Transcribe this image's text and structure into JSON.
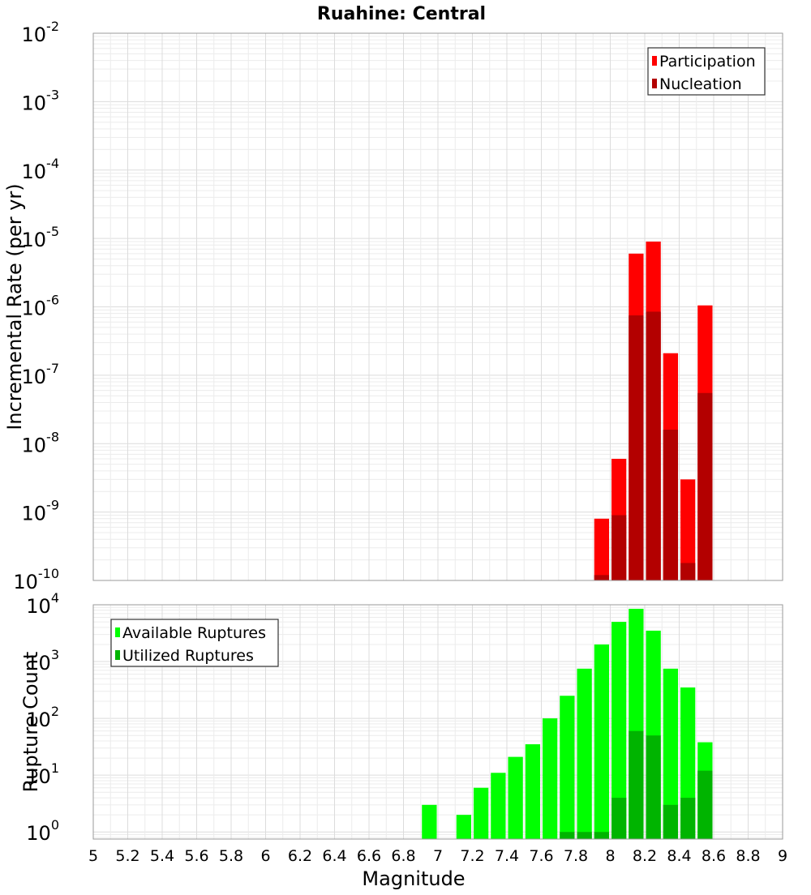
{
  "chart_data": [
    {
      "type": "bar",
      "title": "Ruahine: Central",
      "xlabel": "",
      "ylabel": "Incremental Rate (per yr)",
      "yscale": "log",
      "xlim": [
        5,
        9
      ],
      "ylim": [
        1e-10,
        0.01
      ],
      "ytick_exponents": [
        -10,
        -9,
        -8,
        -7,
        -6,
        -5,
        -4,
        -3,
        -2
      ],
      "grid": true,
      "legend": "top-right",
      "series": [
        {
          "name": "Participation",
          "color": "#ff0000",
          "x": [
            7.95,
            8.05,
            8.15,
            8.25,
            8.35,
            8.45,
            8.55
          ],
          "values": [
            8e-10,
            6e-09,
            6e-06,
            9e-06,
            2.1e-07,
            3e-09,
            1.05e-06
          ]
        },
        {
          "name": "Nucleation",
          "color": "#b30000",
          "x": [
            7.95,
            8.05,
            8.15,
            8.25,
            8.35,
            8.45,
            8.55
          ],
          "values": [
            1.2e-10,
            9e-10,
            7.5e-07,
            8.5e-07,
            1.6e-08,
            1.8e-10,
            5.5e-08
          ]
        }
      ]
    },
    {
      "type": "bar",
      "title": "",
      "xlabel": "Magnitude",
      "ylabel": "Rupture Count",
      "yscale": "log",
      "xlim": [
        5,
        9
      ],
      "ylim": [
        0.75,
        10000
      ],
      "ytick_exponents": [
        0,
        1,
        2,
        3,
        4
      ],
      "xticks": [
        "5",
        "5.2",
        "5.4",
        "5.6",
        "5.8",
        "6",
        "6.2",
        "6.4",
        "6.6",
        "6.8",
        "7",
        "7.2",
        "7.4",
        "7.6",
        "7.8",
        "8",
        "8.2",
        "8.4",
        "8.6",
        "8.8",
        "9"
      ],
      "grid": true,
      "legend": "top-left",
      "series": [
        {
          "name": "Available Ruptures",
          "color": "#00ff00",
          "x": [
            6.95,
            7.15,
            7.25,
            7.35,
            7.45,
            7.55,
            7.65,
            7.75,
            7.85,
            7.95,
            8.05,
            8.15,
            8.25,
            8.35,
            8.45,
            8.55
          ],
          "values": [
            3,
            2,
            6,
            11,
            21,
            35,
            100,
            250,
            750,
            2000,
            5000,
            8500,
            3500,
            750,
            350,
            38
          ]
        },
        {
          "name": "Utilized Ruptures",
          "color": "#00b400",
          "x": [
            7.75,
            7.85,
            7.95,
            8.05,
            8.15,
            8.25,
            8.35,
            8.45,
            8.55
          ],
          "values": [
            1,
            1,
            1,
            4,
            60,
            50,
            3,
            4,
            12
          ]
        }
      ]
    }
  ]
}
